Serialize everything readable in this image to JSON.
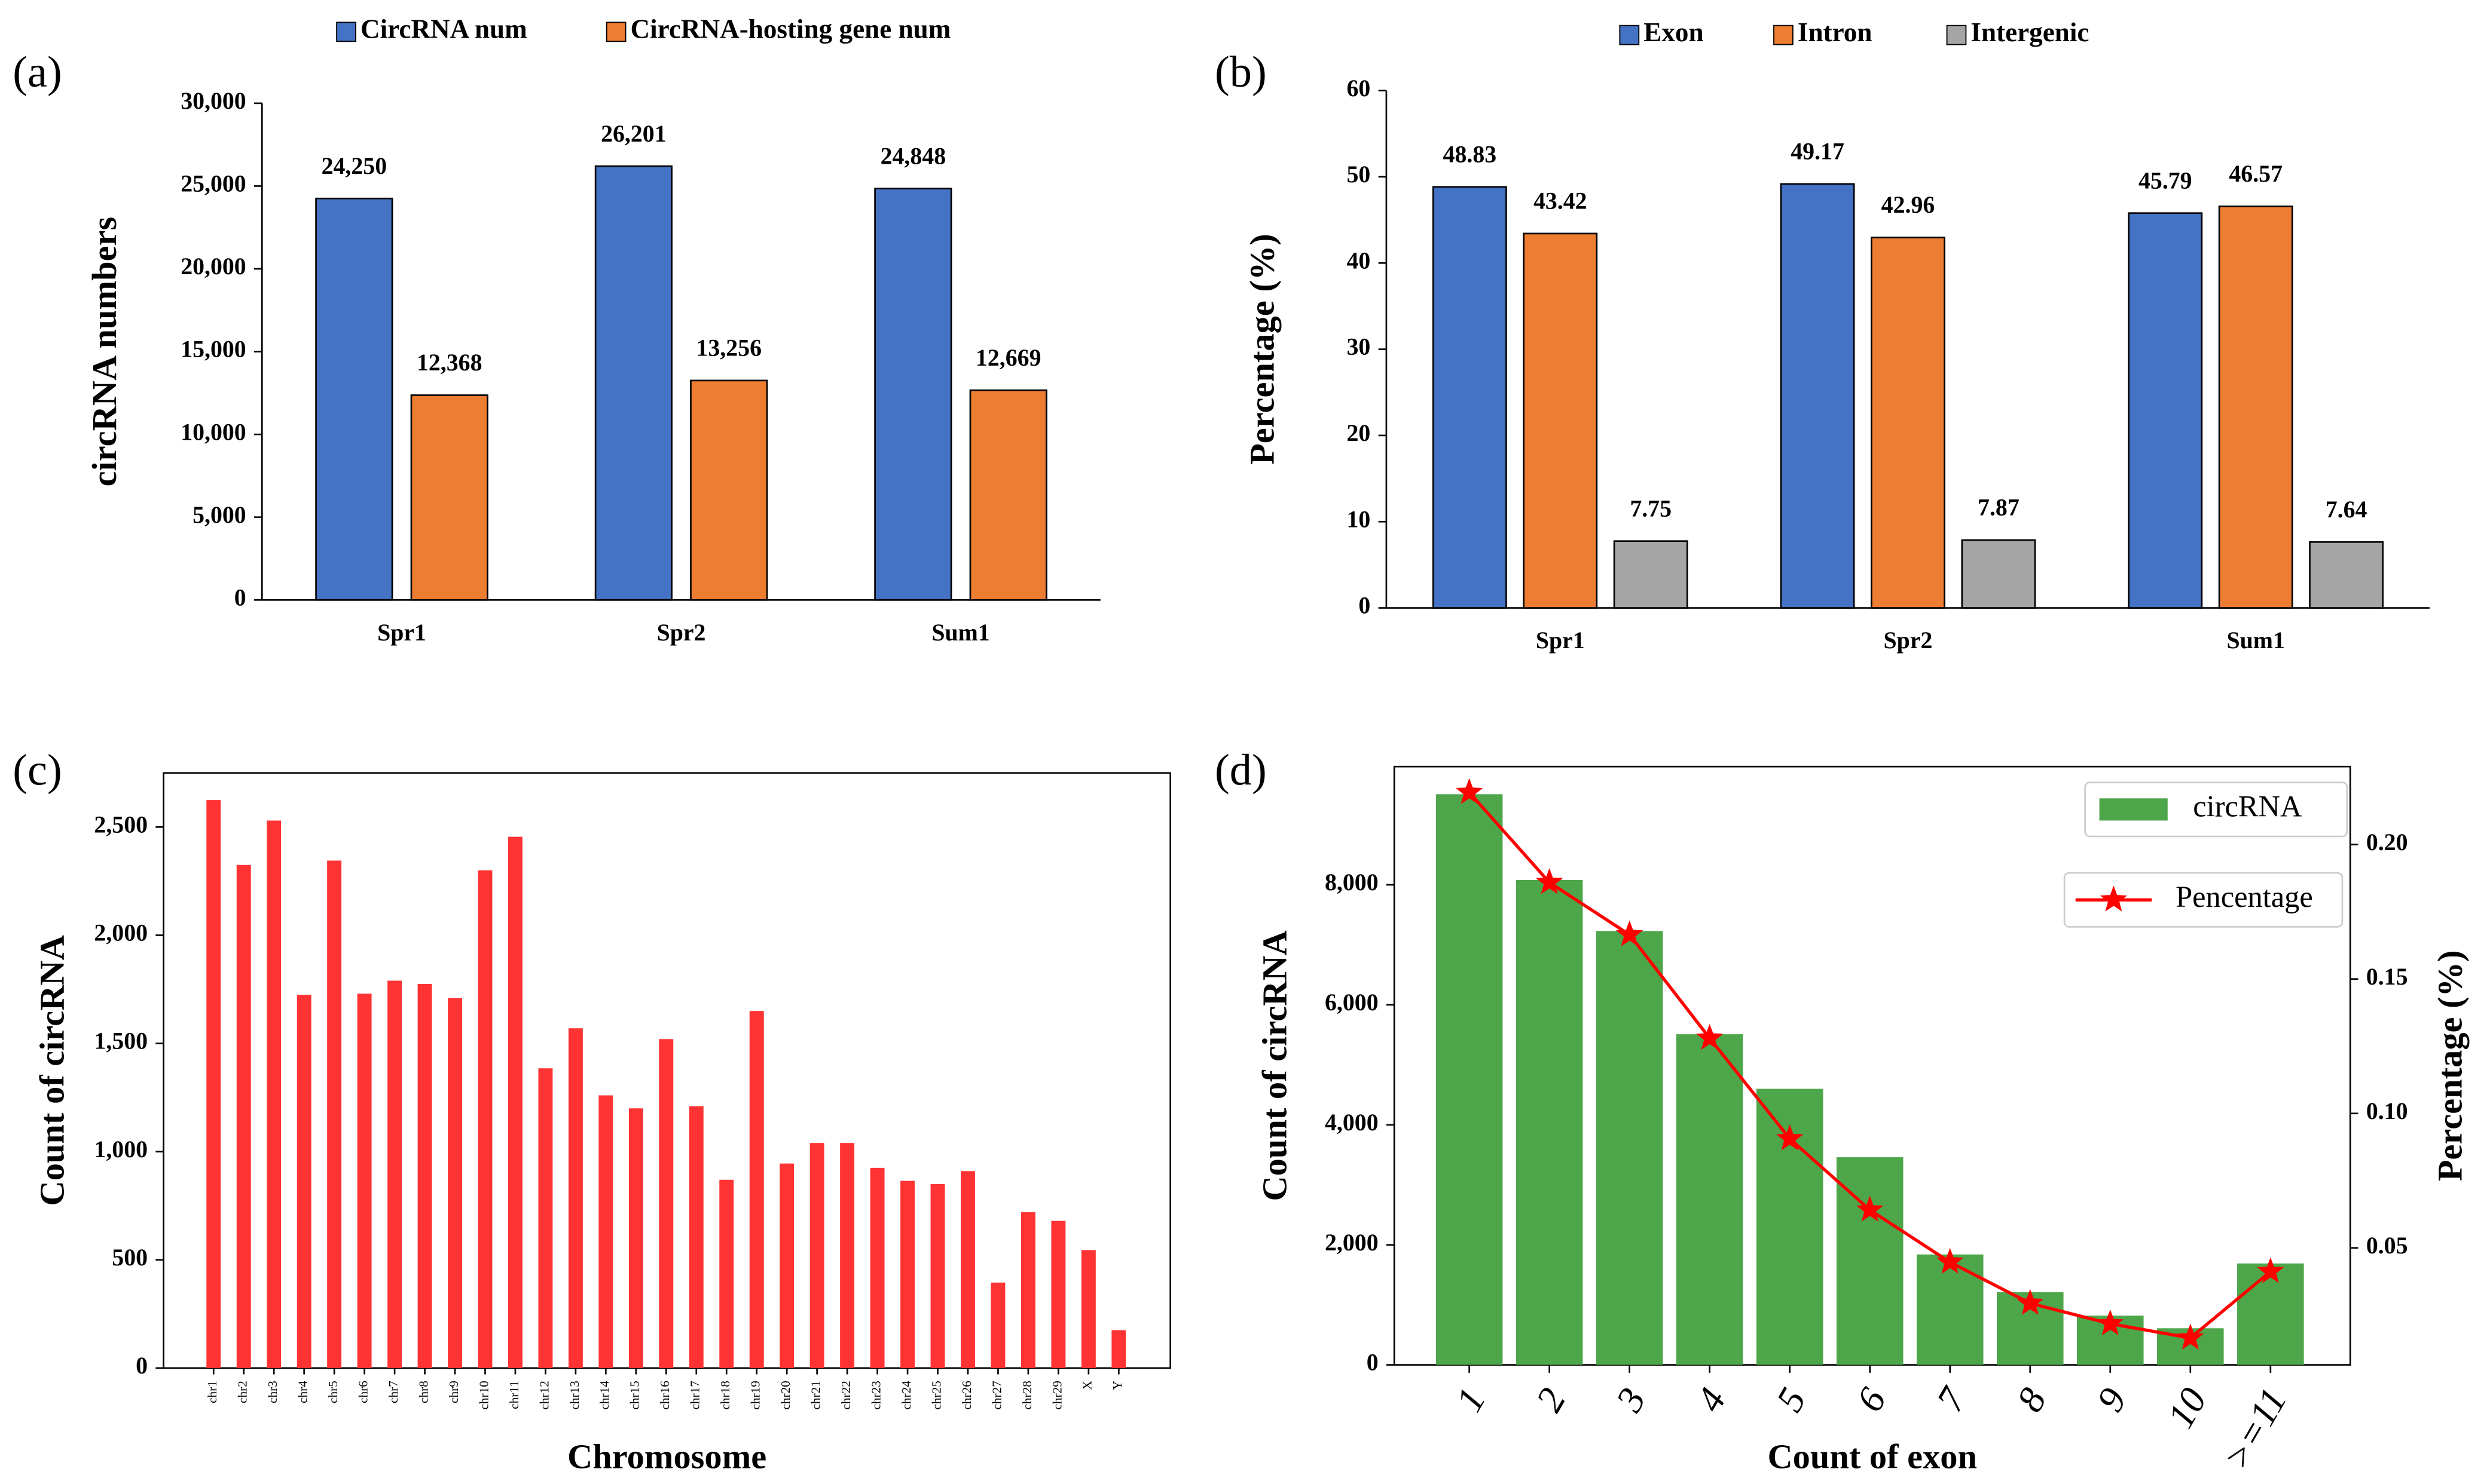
{
  "chart_data": [
    {
      "type": "bar",
      "panel_label": "(a)",
      "ylabel": "circRNA numbers",
      "categories": [
        "Spr1",
        "Spr2",
        "Sum1"
      ],
      "series": [
        {
          "name": "CircRNA num",
          "color": "#4472c4",
          "values": [
            24250,
            26201,
            24848
          ],
          "value_labels": [
            "24,250",
            "26,201",
            "24,848"
          ]
        },
        {
          "name": "CircRNA-hosting gene num",
          "color": "#ed7d31",
          "values": [
            12368,
            13256,
            12669
          ],
          "value_labels": [
            "12,368",
            "13,256",
            "12,669"
          ]
        }
      ],
      "ylim": [
        0,
        30000
      ],
      "yticks": [
        0,
        {
          "value": 5000,
          "label": "5,000"
        },
        {
          "value": 10000,
          "label": "10,000"
        },
        {
          "value": 15000,
          "label": "15,000"
        },
        {
          "value": 20000,
          "label": "20,000"
        },
        {
          "value": 25000,
          "label": "25,000"
        },
        {
          "value": 30000,
          "label": "30,000"
        }
      ]
    },
    {
      "type": "bar",
      "panel_label": "(b)",
      "ylabel": "Percentage (%)",
      "categories": [
        "Spr1",
        "Spr2",
        "Sum1"
      ],
      "series": [
        {
          "name": "Exon",
          "color": "#4472c4",
          "values": [
            48.83,
            49.17,
            45.79
          ]
        },
        {
          "name": "Intron",
          "color": "#ed7d31",
          "values": [
            43.42,
            42.96,
            46.57
          ]
        },
        {
          "name": "Intergenic",
          "color": "#a5a5a5",
          "values": [
            7.75,
            7.87,
            7.64
          ]
        }
      ],
      "ylim": [
        0,
        60
      ],
      "yticks": [
        0,
        10,
        20,
        30,
        40,
        50,
        60
      ]
    },
    {
      "type": "bar",
      "panel_label": "(c)",
      "ylabel": "Count of circRNA",
      "xlabel": "Chromosome",
      "categories": [
        "chr1",
        "chr2",
        "chr3",
        "chr4",
        "chr5",
        "chr6",
        "chr7",
        "chr8",
        "chr9",
        "chr10",
        "chr11",
        "chr12",
        "chr13",
        "chr14",
        "chr15",
        "chr16",
        "chr17",
        "chr18",
        "chr19",
        "chr20",
        "chr21",
        "chr22",
        "chr23",
        "chr24",
        "chr25",
        "chr26",
        "chr27",
        "chr28",
        "chr29",
        "X",
        "Y"
      ],
      "series": [
        {
          "name": null,
          "color": "#ff3333",
          "values": [
            2625,
            2325,
            2530,
            1725,
            2345,
            1730,
            1790,
            1775,
            1710,
            2300,
            2455,
            1385,
            1570,
            1260,
            1200,
            1520,
            1210,
            870,
            1650,
            945,
            1040,
            1040,
            925,
            865,
            850,
            910,
            395,
            720,
            680,
            545,
            175
          ]
        }
      ],
      "ylim": [
        0,
        2750
      ],
      "yticks": [
        0,
        500,
        {
          "value": 1000,
          "label": "1,000"
        },
        {
          "value": 1500,
          "label": "1,500"
        },
        {
          "value": 2000,
          "label": "2,000"
        },
        {
          "value": 2500,
          "label": "2,500"
        }
      ]
    },
    {
      "type": "bar",
      "panel_label": "(d)",
      "ylabel": "Count of circRNA",
      "y2label": "Percentage (%)",
      "xlabel": "Count of exon",
      "categories": [
        "1",
        "2",
        "3",
        "4",
        "5",
        "6",
        "7",
        "8",
        "9",
        "10",
        ">=11"
      ],
      "series": [
        {
          "name": "circRNA",
          "color": "#4ea64a",
          "values": [
            9510,
            8080,
            7230,
            5510,
            4600,
            3460,
            1840,
            1210,
            820,
            610,
            1690
          ]
        },
        {
          "name": "Pencentage",
          "type": "line",
          "axis": "y2",
          "color": "#ff0000",
          "values": [
            0.2194,
            0.1859,
            0.1665,
            0.128,
            0.0906,
            0.0641,
            0.0447,
            0.0294,
            0.0218,
            0.0165,
            0.0412
          ]
        }
      ],
      "ylim": [
        0,
        9970
      ],
      "yticks": [
        0,
        {
          "value": 2000,
          "label": "2,000"
        },
        {
          "value": 4000,
          "label": "4,000"
        },
        {
          "value": 6000,
          "label": "6,000"
        },
        {
          "value": 8000,
          "label": "8,000"
        }
      ],
      "y2lim": [
        0.0065,
        0.229
      ],
      "y2ticks": [
        0.05,
        {
          "value": 0.1,
          "label": "0.10"
        },
        0.15,
        {
          "value": 0.2,
          "label": "0.20"
        }
      ]
    }
  ]
}
